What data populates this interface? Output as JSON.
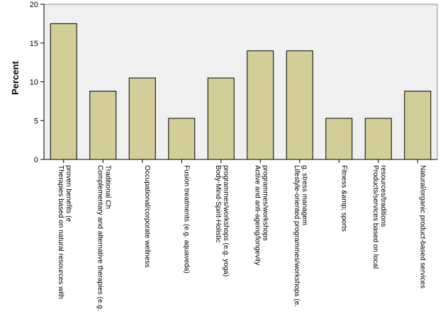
{
  "chart_data": {
    "type": "bar",
    "ylabel": "Percent",
    "xlabel": "",
    "ylim": [
      0,
      20
    ],
    "yticks": [
      "0",
      "5",
      "10",
      "15",
      "20"
    ],
    "grid": false,
    "categories": [
      [
        "Therapies based on natural resources with",
        "proven benefits (e"
      ],
      [
        "Complementary and alternative therapies (e.g.",
        "Traditional Ch"
      ],
      [
        "Occupational/corporate wellness"
      ],
      [
        "Fusion treatments (e.g. aquaveda)"
      ],
      [
        "Body-Mind-Spirit-Holistic",
        "programmes/workshops (e.g. yoga)"
      ],
      [
        "Active and anti-ageing/longevity",
        "programmes/workshops"
      ],
      [
        "Lifestyle-oriented programmes/workshops (e.",
        "g. stress managem"
      ],
      [
        "Fitness &amp; sports"
      ],
      [
        "Products/services based on local",
        "resources/traditions"
      ],
      [
        "Natural/organic product-based services"
      ]
    ],
    "values": [
      17.5,
      8.8,
      10.5,
      5.3,
      10.5,
      14.0,
      14.0,
      5.3,
      5.3,
      8.8
    ],
    "colors": {
      "bar_fill": "#d3ce98",
      "bar_stroke": "#000000",
      "plot_bg": "#f0f0f0",
      "axis": "#000000"
    }
  }
}
